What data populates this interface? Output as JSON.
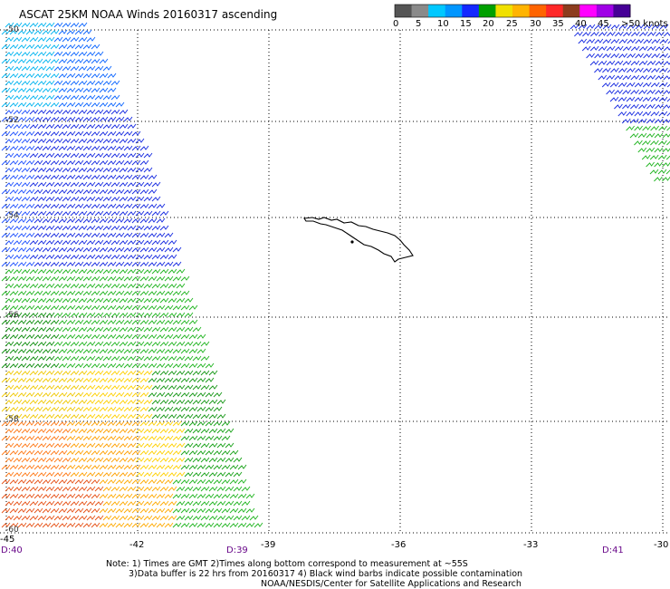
{
  "title": "ASCAT 25KM NOAA Winds 20160317 ascending",
  "legend": {
    "colors": [
      "#555555",
      "#8a8a8a",
      "#00c8ff",
      "#0096ff",
      "#1428ff",
      "#00a000",
      "#f0e000",
      "#ffb400",
      "#ff6400",
      "#ff2828",
      "#8c3c1e",
      "#ff00ff",
      "#a000e6",
      "#460096"
    ],
    "labels": [
      "0",
      "5",
      "10",
      "15",
      "20",
      "25",
      "30",
      "35",
      "40",
      "45",
      ">50 knots"
    ]
  },
  "x_axis": {
    "labels": [
      "-45",
      "-42",
      "-39",
      "-36",
      "-33",
      "-30"
    ]
  },
  "y_axis": {
    "labels": [
      "-50",
      "-52",
      "-54",
      "-56",
      "-58",
      "-60"
    ]
  },
  "time_labels": [
    "D:40",
    "D:39",
    "D:41"
  ],
  "notes": [
    "Note: 1) Times are GMT 2)Times along bottom correspond to measurement at ~55S",
    "3)Data buffer is 22 hrs from 20160317 4) Black wind barbs indicate possible contamination",
    "NOAA/NESDIS/Center for Satellite Applications and Research"
  ]
}
